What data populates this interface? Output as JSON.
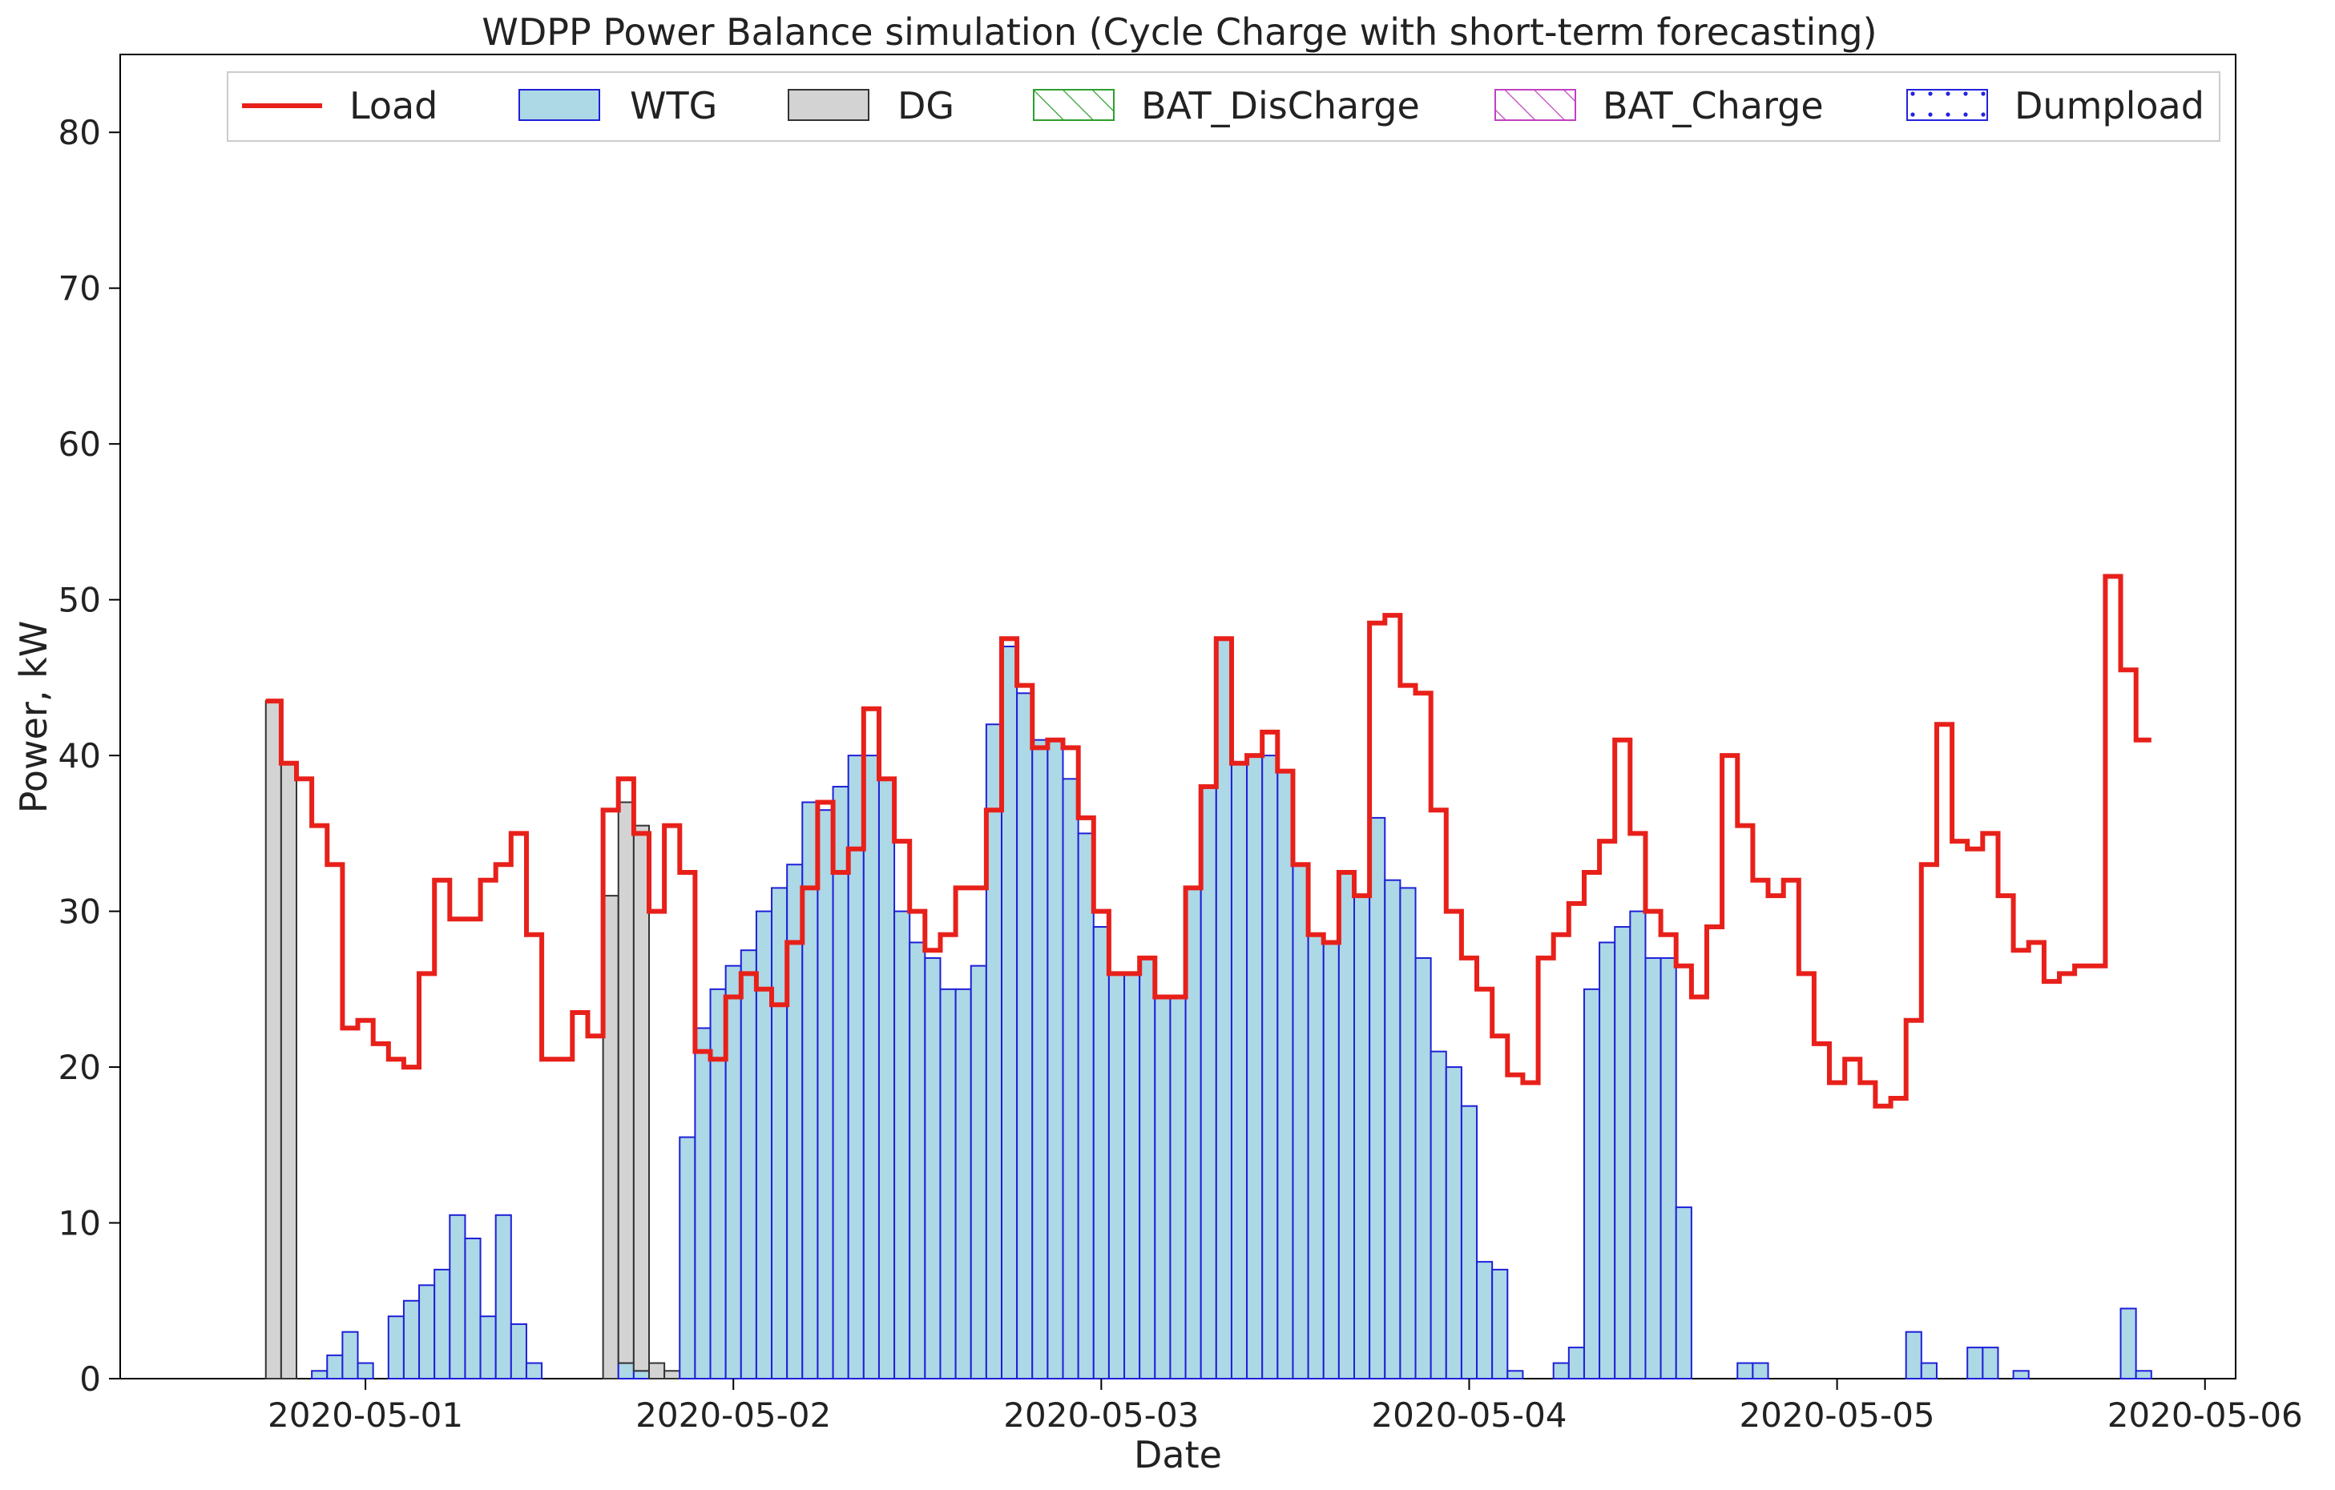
{
  "chart_data": {
    "type": "bar",
    "title": "WDPP Power Balance simulation (Cycle Charge with short-term forecasting)",
    "xlabel": "Date",
    "ylabel": "Power, kW",
    "ylim": [
      0,
      85
    ],
    "yticks": [
      0,
      10,
      20,
      30,
      40,
      50,
      60,
      70,
      80
    ],
    "xlim": [
      "2020-04-30 08:00",
      "2020-05-06 02:00"
    ],
    "xticks": [
      "2020-05-01",
      "2020-05-02",
      "2020-05-03",
      "2020-05-04",
      "2020-05-05",
      "2020-05-06"
    ],
    "start": "2020-04-30 18:00",
    "interval_hours": 1,
    "legend_position": "top",
    "colors": {
      "load": "#e8201a",
      "wtg_fill": "#add8e6",
      "wtg_edge": "#1f1fd8",
      "dg_fill": "#d3d3d3",
      "dg_edge": "#333333",
      "bat_discharge": "#2e9e2e",
      "bat_charge": "#c041c0",
      "dumpload": "#2222dd"
    },
    "legend": [
      {
        "key": "load",
        "label": "Load"
      },
      {
        "key": "wtg",
        "label": "WTG"
      },
      {
        "key": "dg",
        "label": "DG"
      },
      {
        "key": "bat_discharge",
        "label": "BAT_DisCharge"
      },
      {
        "key": "bat_charge",
        "label": "BAT_Charge"
      },
      {
        "key": "dumpload",
        "label": "Dumpload"
      }
    ],
    "series": [
      {
        "name": "Load",
        "values": [
          43.5,
          39.5,
          38.5,
          35.5,
          33,
          22.5,
          23,
          21.5,
          20.5,
          20,
          26,
          32,
          29.5,
          29.5,
          32,
          33,
          35,
          28.5,
          20.5,
          20.5,
          23.5,
          22,
          36.5,
          38.5,
          35,
          30,
          35.5,
          32.5,
          21,
          20.5,
          24.5,
          26,
          25,
          24,
          28,
          31.5,
          37,
          32.5,
          34,
          43,
          38.5,
          34.5,
          30,
          27.5,
          28.5,
          31.5,
          31.5,
          36.5,
          47.5,
          44.5,
          40.5,
          41,
          40.5,
          36,
          30,
          26,
          26,
          27,
          24.5,
          24.5,
          31.5,
          38,
          47.5,
          39.5,
          40,
          41.5,
          39,
          33,
          28.5,
          28,
          32.5,
          31,
          48.5,
          49,
          44.5,
          44,
          36.5,
          30,
          27,
          25,
          22,
          19.5,
          19,
          27,
          28.5,
          30.5,
          32.5,
          34.5,
          41,
          35,
          30,
          28.5,
          26.5,
          24.5,
          29,
          40,
          35.5,
          32,
          31,
          32,
          26,
          21.5,
          19,
          20.5,
          19,
          17.5,
          18,
          23,
          33,
          42,
          34.5,
          34,
          35,
          31,
          27.5,
          28,
          25.5,
          26,
          26.5,
          26.5,
          51.5,
          45.5,
          41
        ]
      },
      {
        "name": "WTG",
        "values": [
          0,
          0,
          0,
          0.5,
          1.5,
          3,
          1,
          0,
          4,
          5,
          6,
          7,
          10.5,
          9,
          4,
          10.5,
          3.5,
          1,
          0,
          0,
          0,
          0,
          0,
          1,
          0.5,
          0,
          0,
          15.5,
          22.5,
          25,
          26.5,
          27.5,
          30,
          31.5,
          33,
          37,
          36.5,
          38,
          40,
          40,
          38.5,
          30,
          28,
          27,
          25,
          25,
          26.5,
          42,
          47,
          44,
          41,
          41,
          38.5,
          35,
          29,
          26,
          26,
          27,
          24.5,
          24.5,
          31.5,
          38,
          47.5,
          39.5,
          40,
          40,
          39,
          33,
          28.5,
          28,
          32.5,
          31,
          36,
          32,
          31.5,
          27,
          21,
          20,
          17.5,
          7.5,
          7,
          0.5,
          0,
          0,
          1,
          2,
          25,
          28,
          29,
          30,
          27,
          27,
          11,
          0,
          0,
          0,
          1,
          1,
          0,
          0,
          0,
          0,
          0,
          0,
          0,
          0,
          0,
          3,
          1,
          0,
          0,
          2,
          2,
          0,
          0.5,
          0,
          0,
          0,
          0,
          0,
          0,
          4.5,
          0.5
        ]
      },
      {
        "name": "DG",
        "values": [
          43.5,
          39.5,
          0,
          0,
          0,
          0,
          0,
          0,
          0,
          0,
          0,
          0,
          0,
          0,
          0,
          0,
          0,
          0,
          0,
          0,
          0,
          0,
          31,
          36,
          35,
          1,
          0.5,
          0,
          0,
          0,
          0,
          0,
          0,
          0,
          0,
          0,
          0,
          0,
          0,
          0,
          0,
          0,
          0,
          0,
          0,
          0,
          0,
          0,
          0,
          0,
          0,
          0,
          0,
          0,
          0,
          0,
          0,
          0,
          0,
          0,
          0,
          0,
          0,
          0,
          0,
          0,
          0,
          0,
          0,
          0,
          0,
          0,
          0,
          0,
          0,
          0,
          0,
          0,
          0,
          0,
          0,
          0,
          0,
          0,
          0,
          0,
          0,
          0,
          0,
          0,
          0,
          0,
          0,
          0,
          0,
          0,
          0,
          0,
          0,
          0,
          0,
          0,
          0,
          0,
          0,
          0,
          0,
          0,
          0,
          0,
          0,
          0,
          0,
          0,
          0,
          0,
          0,
          0,
          0,
          0,
          0,
          0,
          0
        ]
      },
      {
        "name": "BAT_DisCharge",
        "values": [
          0,
          0,
          0,
          0,
          0,
          0,
          0,
          0,
          0,
          0,
          0,
          0,
          0,
          0,
          0,
          0,
          0,
          0,
          0,
          0,
          0,
          0,
          0,
          0,
          0,
          0,
          0,
          0,
          0,
          0,
          0,
          0,
          0,
          0,
          0,
          0,
          0,
          0,
          0,
          0,
          0,
          0,
          0,
          0,
          0,
          0,
          0,
          0,
          0,
          0,
          0,
          0,
          0,
          0,
          0,
          0,
          0,
          0,
          0,
          0,
          0,
          0,
          0,
          0,
          0,
          0,
          0,
          0,
          0,
          0,
          0,
          0,
          0,
          0,
          0,
          0,
          0,
          0,
          0,
          0,
          0,
          0,
          0,
          0,
          0,
          0,
          0,
          0,
          0,
          0,
          0,
          0,
          0,
          0,
          0,
          0,
          0,
          0,
          0,
          0,
          0,
          0,
          0,
          0,
          0,
          0,
          0,
          0,
          0,
          0,
          0,
          0,
          0,
          0,
          0,
          0,
          0,
          0,
          0,
          0,
          0,
          0,
          0
        ]
      },
      {
        "name": "BAT_Charge",
        "values": [
          0,
          0,
          0,
          0,
          0,
          0,
          0,
          0,
          0,
          0,
          0,
          0,
          0,
          0,
          0,
          0,
          0,
          0,
          0,
          0,
          0,
          0,
          0,
          0,
          0,
          0,
          0,
          0,
          0,
          0,
          0,
          0,
          0,
          0,
          0,
          0,
          0,
          0,
          0,
          0,
          0,
          0,
          0,
          0,
          0,
          0,
          0,
          0,
          0,
          0,
          0,
          0,
          0,
          0,
          0,
          0,
          0,
          0,
          0,
          0,
          0,
          0,
          0,
          0,
          0,
          0,
          0,
          0,
          0,
          0,
          0,
          0,
          0,
          0,
          0,
          0,
          0,
          0,
          0,
          0,
          0,
          0,
          0,
          0,
          0,
          0,
          0,
          0,
          0,
          0,
          0,
          0,
          0,
          0,
          0,
          0,
          0,
          0,
          0,
          0,
          0,
          0,
          0,
          0,
          0,
          0,
          0,
          0,
          0,
          0,
          0,
          0,
          0,
          0,
          0,
          0,
          0,
          0,
          0,
          0,
          0,
          0,
          0
        ]
      },
      {
        "name": "Dumpload",
        "values": [
          0,
          0,
          0,
          0,
          0,
          0,
          0,
          0,
          0,
          0,
          0,
          0,
          0,
          0,
          0,
          0,
          0,
          0,
          0,
          0,
          0,
          0,
          0,
          0,
          0,
          0,
          0,
          0,
          0,
          0,
          0,
          0,
          0,
          0,
          0,
          0,
          0,
          0,
          0,
          0,
          0,
          0,
          0,
          0,
          0,
          0,
          0,
          0,
          0,
          0,
          0,
          0,
          0,
          0,
          0,
          0,
          0,
          0,
          0,
          0,
          0,
          0,
          0,
          0,
          0,
          0,
          0,
          0,
          0,
          0,
          0,
          0,
          0,
          0,
          0,
          0,
          0,
          0,
          0,
          0,
          0,
          0,
          0,
          0,
          0,
          0,
          0,
          0,
          0,
          0,
          0,
          0,
          0,
          0,
          0,
          0,
          0,
          0,
          0,
          0,
          0,
          0,
          0,
          0,
          0,
          0,
          0,
          0,
          0,
          0,
          0,
          0,
          0,
          0,
          0,
          0,
          0,
          0,
          0,
          0,
          0,
          0,
          0
        ]
      }
    ]
  }
}
